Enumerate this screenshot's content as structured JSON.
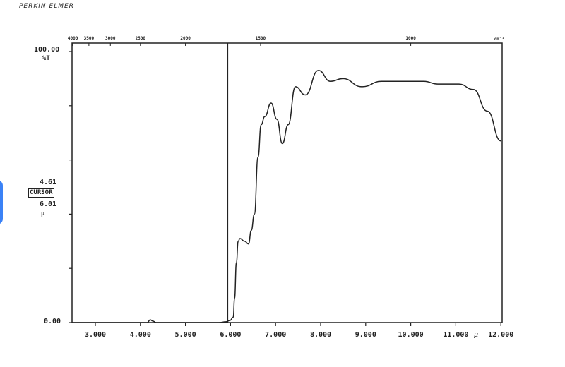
{
  "brand": "PERKIN ELMER",
  "left_panel": {
    "y_top_label": "100.00",
    "y_unit": "%T",
    "cursor_value_1": "4.61",
    "cursor_label": "CURSOR",
    "cursor_value_2": "6.01",
    "cursor_unit": "µ",
    "y_bottom_label": "0.00"
  },
  "chart_data": {
    "type": "line",
    "title": "",
    "xlabel": "µ",
    "ylabel": "%T",
    "xlim": [
      2.5,
      12.0
    ],
    "ylim": [
      0,
      100
    ],
    "grid": false,
    "x_ticks": [
      "3.000",
      "4.000",
      "5.000",
      "6.000",
      "7.000",
      "8.000",
      "9.000",
      "10.000",
      "11.000",
      "12.000"
    ],
    "top_axis": {
      "unit": "cm⁻¹",
      "ticks": [
        "4000",
        "3500",
        "3000",
        "2500",
        "2000",
        "1500",
        "1000"
      ]
    },
    "y_ticks": [
      0,
      20,
      40,
      60,
      80,
      100
    ],
    "cursor_x": 6.0,
    "series": [
      {
        "x": [
          2.48,
          4.15,
          4.22,
          4.27,
          4.35,
          5.74,
          5.9,
          5.99,
          6.06,
          6.09,
          6.13,
          6.17,
          6.21,
          6.31,
          6.4,
          6.46,
          6.53,
          6.61,
          6.68,
          6.76,
          6.9,
          7.03,
          7.15,
          7.28,
          7.44,
          7.66,
          7.95,
          8.22,
          8.49,
          8.92,
          9.35,
          9.82,
          10.29,
          10.6,
          11.07,
          11.39,
          11.7,
          12.0
        ],
        "y": [
          0,
          0,
          1,
          0.6,
          0,
          0,
          0.3,
          0.8,
          2,
          9,
          22,
          30,
          31,
          30,
          29,
          34,
          40,
          61,
          73,
          76,
          81,
          75,
          66,
          73,
          87,
          84,
          93,
          89,
          90,
          87,
          89,
          89,
          89,
          88,
          88,
          86,
          78,
          67
        ]
      }
    ],
    "line_color": "#222222"
  }
}
